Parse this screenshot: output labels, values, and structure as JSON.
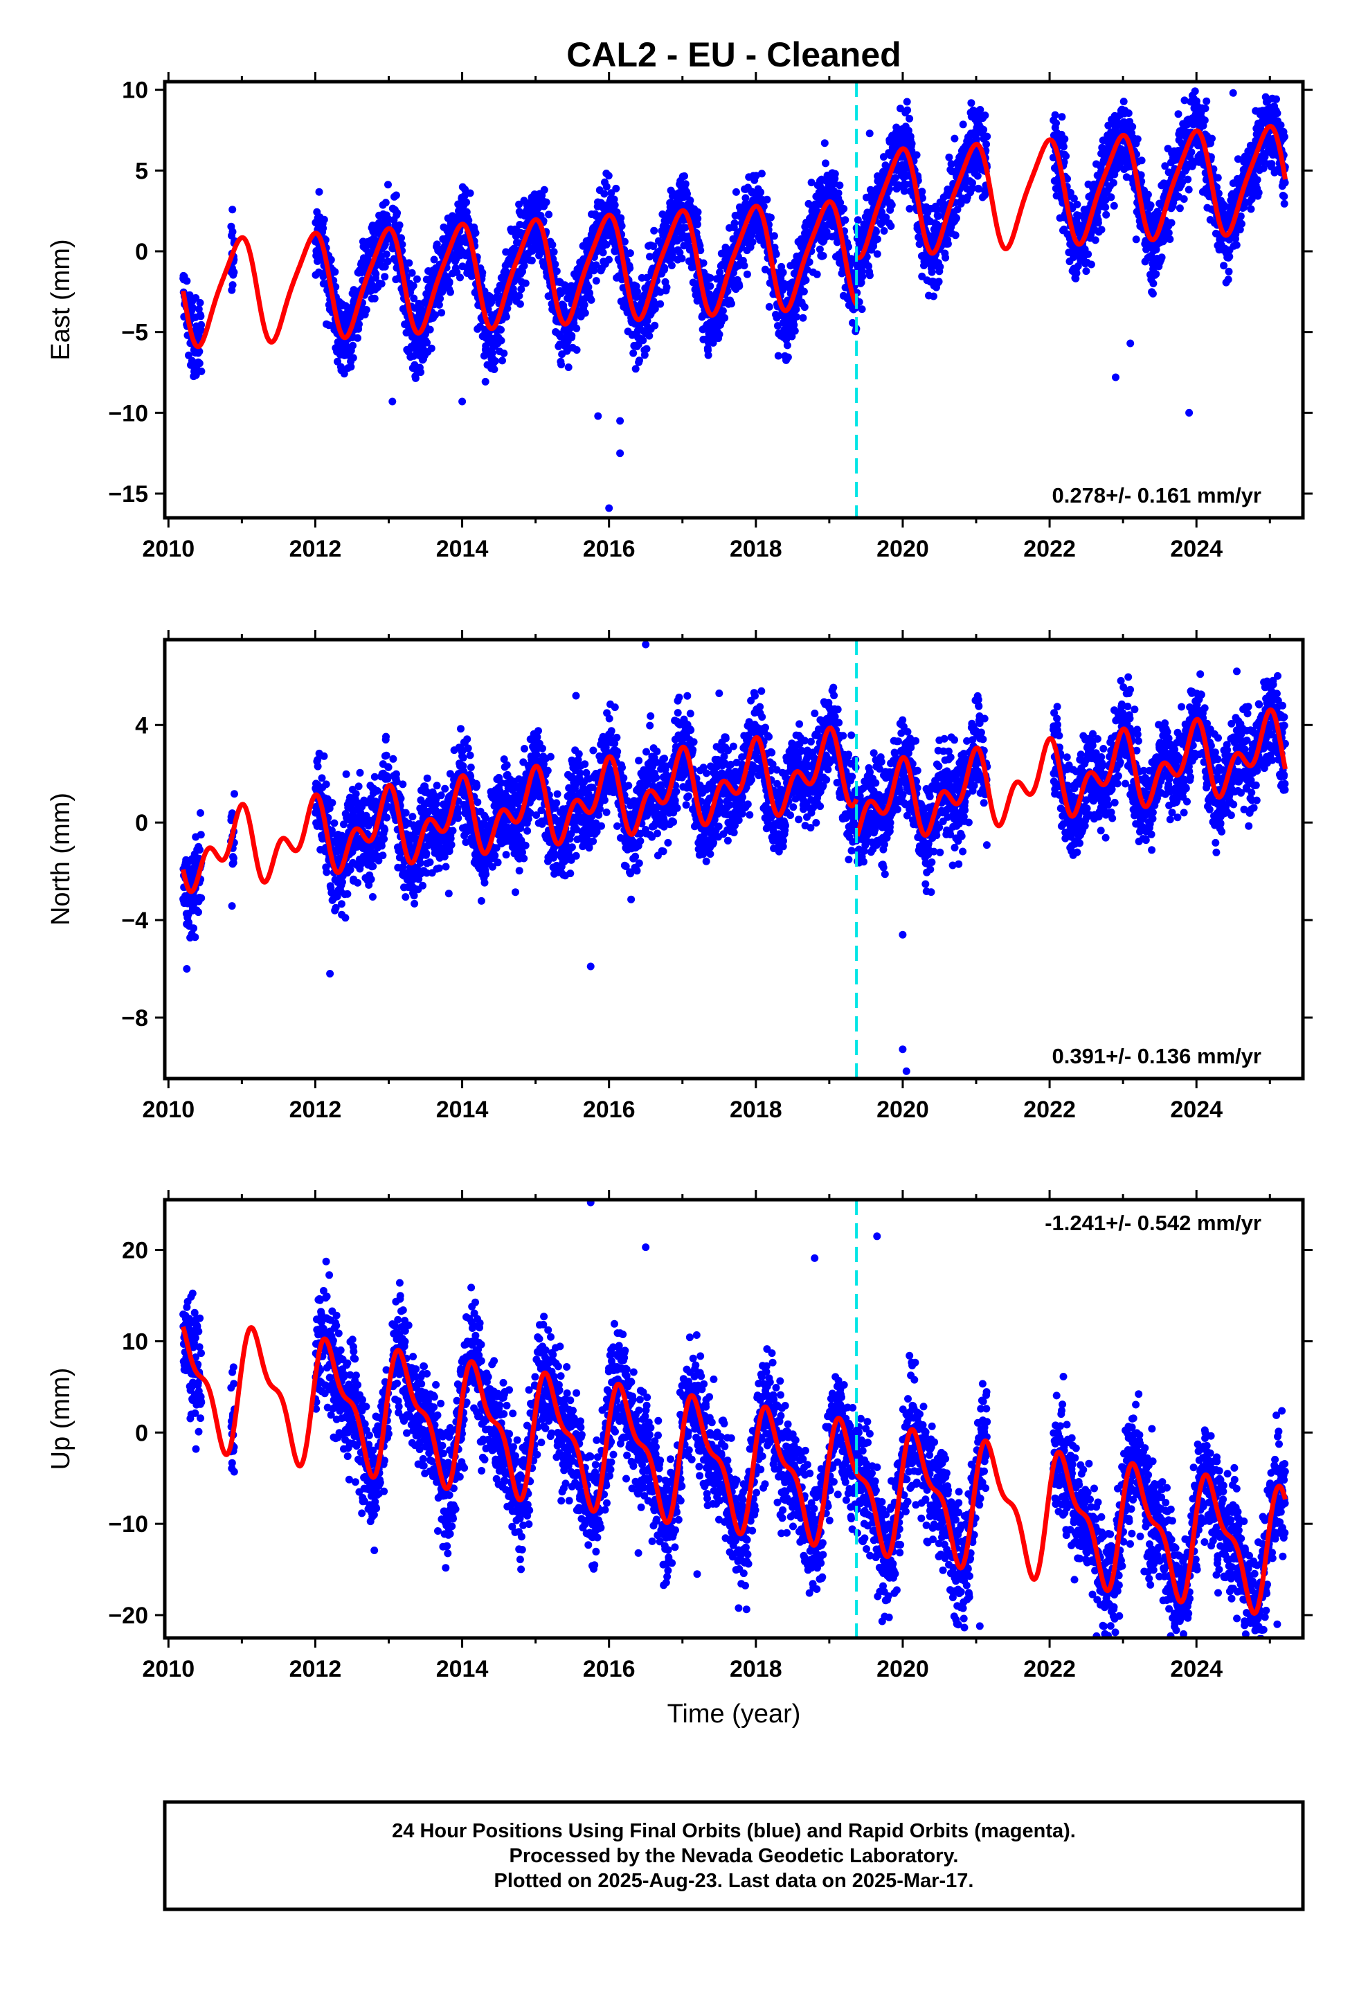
{
  "title": "CAL2  - EU - Cleaned",
  "xlabel": "Time (year)",
  "footer": [
    "24 Hour Positions Using Final Orbits (blue) and Rapid Orbits (magenta).",
    "Processed by the Nevada Geodetic Laboratory.",
    "Plotted on 2025-Aug-23. Last data on 2025-Mar-17."
  ],
  "colors": {
    "data": "#0000ff",
    "model": "#ff0000",
    "event": "#00e5e5",
    "frame": "#000000"
  },
  "chart_data": [
    {
      "type": "scatter",
      "component": "East",
      "ylabel": "East (mm)",
      "xlim": [
        2009.95,
        2025.45
      ],
      "ylim": [
        -16.5,
        10.5
      ],
      "xticks": [
        2010,
        2012,
        2014,
        2016,
        2018,
        2020,
        2022,
        2024
      ],
      "yticks": [
        10,
        5,
        0,
        -5,
        -10,
        -15
      ],
      "ytick_labels": [
        "10",
        "5",
        "0",
        "−5",
        "−10",
        "−15"
      ],
      "rate": "0.278+/- 0.161 mm/yr",
      "rate_position": "bottom-right",
      "event_line_x": 2019.37,
      "model": {
        "trend": 0.278,
        "offset": -2.6,
        "annual_amp": 3.1,
        "annual_phase": 1.9,
        "semi_amp": 0.6,
        "semi_phase": 0.4,
        "steps": [
          {
            "x": 2019.37,
            "dy": 3.0
          }
        ]
      },
      "data_segments": [
        [
          2010.2,
          2010.45
        ],
        [
          2010.85,
          2010.9
        ],
        [
          2012.0,
          2013.0
        ],
        [
          2013.05,
          2019.37
        ],
        [
          2019.37,
          2021.15
        ],
        [
          2022.05,
          2025.21
        ]
      ],
      "noise": 1.25,
      "outliers": [
        [
          2016.0,
          -15.9
        ],
        [
          2016.15,
          -12.5
        ],
        [
          2016.15,
          -10.5
        ],
        [
          2015.85,
          -10.2
        ],
        [
          2013.05,
          -9.3
        ],
        [
          2014.0,
          -9.3
        ],
        [
          2022.9,
          -7.8
        ],
        [
          2023.9,
          -10.0
        ],
        [
          2023.1,
          -5.7
        ],
        [
          2019.55,
          7.3
        ],
        [
          2024.5,
          9.8
        ]
      ]
    },
    {
      "type": "scatter",
      "component": "North",
      "ylabel": "North (mm)",
      "xlim": [
        2009.95,
        2025.45
      ],
      "ylim": [
        -10.5,
        7.5
      ],
      "xticks": [
        2010,
        2012,
        2014,
        2016,
        2018,
        2020,
        2022,
        2024
      ],
      "yticks": [
        4,
        0,
        -4,
        -8
      ],
      "ytick_labels": [
        "4",
        "0",
        "−4",
        "−8"
      ],
      "rate": "0.391+/- 0.136 mm/yr",
      "rate_position": "bottom-right",
      "event_line_x": 2019.37,
      "model": {
        "trend": 0.391,
        "offset": -1.4,
        "annual_amp": 1.0,
        "annual_phase": 2.0,
        "semi_amp": 0.9,
        "semi_phase": 1.2,
        "steps": [
          {
            "x": 2019.37,
            "dy": -1.6
          }
        ]
      },
      "data_segments": [
        [
          2010.2,
          2010.45
        ],
        [
          2010.85,
          2010.9
        ],
        [
          2012.0,
          2013.0
        ],
        [
          2013.05,
          2019.37
        ],
        [
          2019.37,
          2021.15
        ],
        [
          2022.05,
          2025.21
        ]
      ],
      "noise": 0.95,
      "outliers": [
        [
          2016.5,
          7.3
        ],
        [
          2015.55,
          5.2
        ],
        [
          2017.5,
          5.3
        ],
        [
          2015.75,
          -5.9
        ],
        [
          2012.2,
          -6.2
        ],
        [
          2010.25,
          -6.0
        ],
        [
          2020.0,
          -9.3
        ],
        [
          2020.05,
          -10.2
        ],
        [
          2024.55,
          6.2
        ],
        [
          2020.0,
          -4.6
        ]
      ]
    },
    {
      "type": "scatter",
      "component": "Up",
      "ylabel": "Up (mm)",
      "xlim": [
        2009.95,
        2025.45
      ],
      "ylim": [
        -22.5,
        25.5
      ],
      "xticks": [
        2010,
        2012,
        2014,
        2016,
        2018,
        2020,
        2022,
        2024
      ],
      "yticks": [
        20,
        10,
        0,
        -10,
        -20
      ],
      "ytick_labels": [
        "20",
        "10",
        "0",
        "−10",
        "−20"
      ],
      "rate": "-1.241+/- 0.542 mm/yr",
      "rate_position": "top-right",
      "event_line_x": 2019.37,
      "model": {
        "trend": -1.241,
        "offset": 6.0,
        "annual_amp": 5.8,
        "annual_phase": 0.2,
        "semi_amp": 2.5,
        "semi_phase": 0.6,
        "steps": []
      },
      "data_segments": [
        [
          2010.2,
          2010.45
        ],
        [
          2010.85,
          2010.9
        ],
        [
          2012.0,
          2013.0
        ],
        [
          2013.05,
          2019.37
        ],
        [
          2019.37,
          2021.15
        ],
        [
          2022.05,
          2025.21
        ]
      ],
      "noise": 3.2,
      "outliers": [
        [
          2015.75,
          25.2
        ],
        [
          2016.5,
          20.3
        ],
        [
          2018.8,
          19.1
        ],
        [
          2019.65,
          21.5
        ],
        [
          2021.05,
          -21.2
        ],
        [
          2022.95,
          -20.1
        ],
        [
          2023.7,
          -19.8
        ],
        [
          2025.1,
          -21.0
        ],
        [
          2017.2,
          -15.5
        ],
        [
          2016.4,
          -13.2
        ]
      ]
    }
  ]
}
